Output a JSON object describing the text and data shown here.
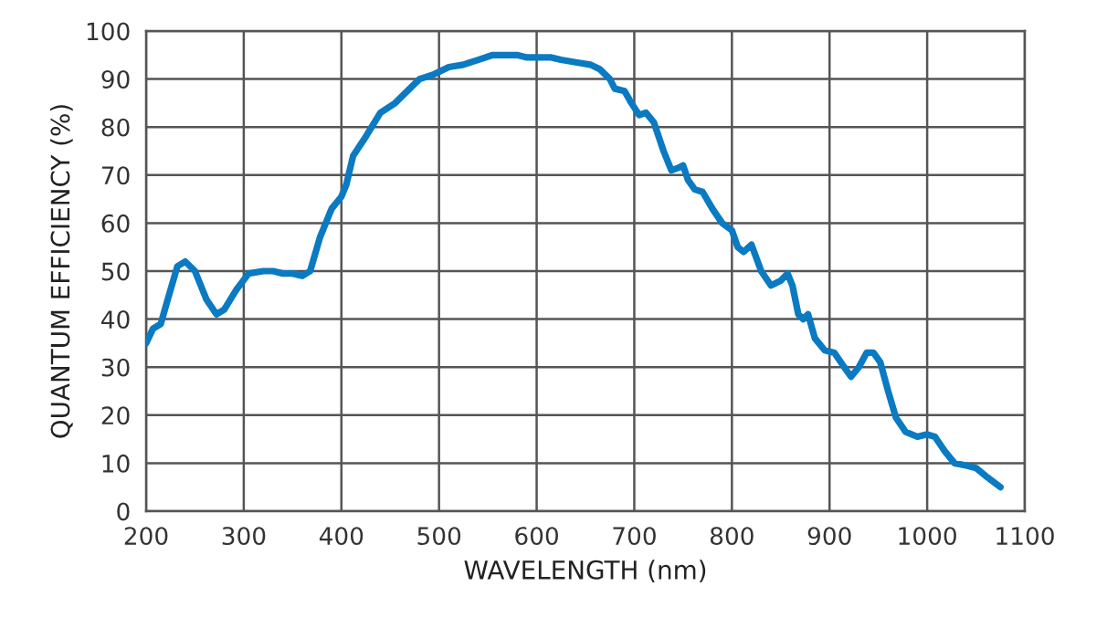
{
  "chart_data": {
    "type": "line",
    "xlabel": "WAVELENGTH (nm)",
    "ylabel": "QUANTUM EFFICIENCY (%)",
    "xlim": [
      200,
      1100
    ],
    "xticks": [
      200,
      300,
      400,
      500,
      600,
      700,
      800,
      900,
      1000,
      1100
    ],
    "ylim": [
      0,
      100
    ],
    "yticks": [
      0,
      10,
      20,
      30,
      40,
      50,
      60,
      70,
      80,
      90,
      100
    ],
    "grid": true,
    "marker": "none",
    "line_style": "solid",
    "series": [
      {
        "color": "#0a7ac2",
        "x": [
          200,
          207,
          215,
          222,
          232,
          240,
          250,
          262,
          272,
          280,
          292,
          305,
          320,
          330,
          340,
          350,
          360,
          368,
          378,
          390,
          400,
          405,
          412,
          425,
          440,
          455,
          465,
          480,
          495,
          510,
          525,
          540,
          555,
          570,
          580,
          590,
          600,
          615,
          625,
          640,
          655,
          665,
          675,
          680,
          690,
          697,
          705,
          712,
          720,
          730,
          738,
          745,
          750,
          755,
          762,
          770,
          780,
          790,
          800,
          806,
          812,
          820,
          830,
          840,
          850,
          857,
          862,
          868,
          873,
          878,
          885,
          895,
          905,
          915,
          922,
          930,
          938,
          945,
          952,
          960,
          968,
          978,
          990,
          1000,
          1008,
          1018,
          1028,
          1040,
          1050,
          1062,
          1075
        ],
        "values": [
          35,
          38,
          39,
          44,
          51,
          52,
          50,
          44,
          41,
          42,
          46,
          49.5,
          50,
          50,
          49.5,
          49.5,
          49,
          50,
          57,
          63,
          65.5,
          68,
          74,
          78,
          83,
          85,
          87,
          90,
          91,
          92.5,
          93,
          94,
          95,
          95,
          95,
          94.5,
          94.5,
          94.5,
          94,
          93.5,
          93,
          92,
          90,
          88,
          87.5,
          85,
          82.5,
          83,
          81,
          75,
          71,
          71.5,
          72,
          69,
          67,
          66.5,
          63,
          60,
          58.5,
          55,
          54,
          55.5,
          50,
          47,
          48,
          49.5,
          47,
          41,
          40,
          41,
          36,
          33.5,
          33,
          30,
          28,
          30,
          33,
          33,
          31,
          25,
          19.5,
          16.5,
          15.5,
          16,
          15.5,
          12.5,
          10,
          9.5,
          9,
          7,
          5
        ]
      }
    ]
  }
}
